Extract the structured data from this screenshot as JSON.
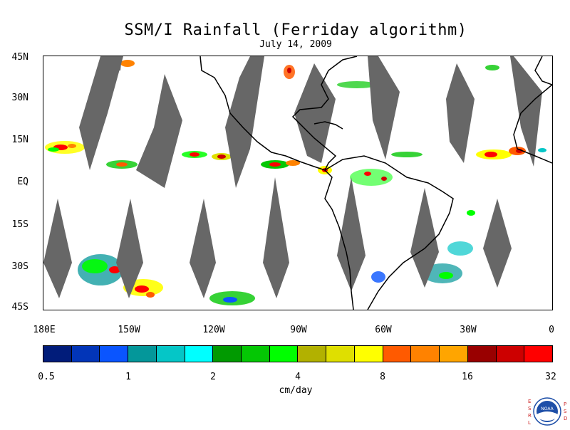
{
  "header": {
    "title": "SSM/I Rainfall (Ferriday algorithm)",
    "date": "July 14, 2009"
  },
  "map": {
    "lat_labels": [
      "45N",
      "30N",
      "15N",
      "EQ",
      "15S",
      "30S",
      "45S"
    ],
    "lon_labels": [
      "180E",
      "150W",
      "120W",
      "90W",
      "60W",
      "30W",
      "0"
    ],
    "lat_range": [
      -45,
      45
    ],
    "lon_range": [
      -180,
      0
    ],
    "missing_swath_color": "#676767",
    "coastline_color": "#000000"
  },
  "colorbar": {
    "tick_labels": [
      "0.5",
      "1",
      "2",
      "4",
      "8",
      "16",
      "32"
    ],
    "units": "cm/day",
    "colors": [
      "#011c7a",
      "#0235b8",
      "#0a55ff",
      "#04979a",
      "#05c6c7",
      "#00ffff",
      "#019a01",
      "#04c704",
      "#00ff00",
      "#b2b100",
      "#dfdf00",
      "#ffff00",
      "#ff5a00",
      "#ff8200",
      "#ffa500",
      "#990000",
      "#cd0000",
      "#ff0000"
    ]
  },
  "logo": {
    "left_letters": "ESRL",
    "right_letters": "PSD",
    "center_text": "NOAA"
  }
}
